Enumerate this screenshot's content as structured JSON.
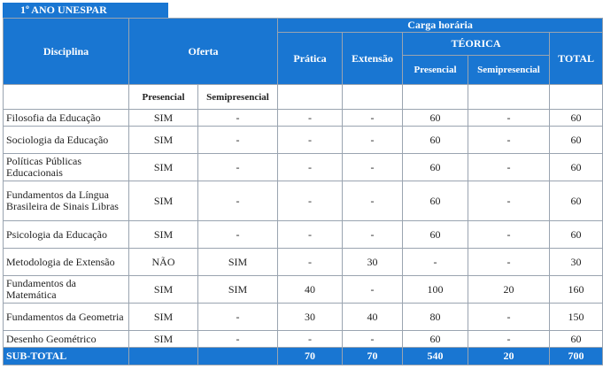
{
  "tab_label": "1º ANO  UNESPAR",
  "headers": {
    "disciplina": "Disciplina",
    "oferta": "Oferta",
    "carga": "Carga horária",
    "pratica": "Prática",
    "extensao": "Extensão",
    "teorica": "TÉORICA",
    "presencial": "Presencial",
    "semipresencial": "Semipresencial",
    "total": "TOTAL"
  },
  "sub_headers": {
    "presencial": "Presencial",
    "semipresencial": "Semipresencial"
  },
  "rows": [
    {
      "disciplina": "Filosofia da Educação",
      "presencial": "SIM",
      "semipresencial": "-",
      "pratica": "-",
      "extensao": "-",
      "t_presencial": "60",
      "t_semipresencial": "-",
      "total": "60"
    },
    {
      "disciplina": "Sociologia da Educação",
      "presencial": "SIM",
      "semipresencial": "-",
      "pratica": "-",
      "extensao": "-",
      "t_presencial": "60",
      "t_semipresencial": "-",
      "total": "60"
    },
    {
      "disciplina": "Políticas Públicas Educacionais",
      "presencial": "SIM",
      "semipresencial": "-",
      "pratica": "-",
      "extensao": "-",
      "t_presencial": "60",
      "t_semipresencial": "-",
      "total": "60"
    },
    {
      "disciplina": "Fundamentos da Língua Brasileira de Sinais Libras",
      "presencial": "SIM",
      "semipresencial": "-",
      "pratica": "-",
      "extensao": "-",
      "t_presencial": "60",
      "t_semipresencial": "-",
      "total": "60"
    },
    {
      "disciplina": "Psicologia da Educação",
      "presencial": "SIM",
      "semipresencial": "-",
      "pratica": "-",
      "extensao": "-",
      "t_presencial": "60",
      "t_semipresencial": "-",
      "total": "60"
    },
    {
      "disciplina": "Metodologia de Extensão",
      "presencial": "NÃO",
      "semipresencial": "SIM",
      "pratica": "-",
      "extensao": "30",
      "t_presencial": "-",
      "t_semipresencial": "-",
      "total": "30"
    },
    {
      "disciplina": "Fundamentos da Matemática",
      "presencial": "SIM",
      "semipresencial": "SIM",
      "pratica": "40",
      "extensao": "-",
      "t_presencial": "100",
      "t_semipresencial": "20",
      "total": "160"
    },
    {
      "disciplina": "Fundamentos da Geometria",
      "presencial": "SIM",
      "semipresencial": "-",
      "pratica": "30",
      "extensao": "40",
      "t_presencial": "80",
      "t_semipresencial": "-",
      "total": "150"
    },
    {
      "disciplina": "Desenho Geométrico",
      "presencial": "SIM",
      "semipresencial": "-",
      "pratica": "-",
      "extensao": "-",
      "t_presencial": "60",
      "t_semipresencial": "-",
      "total": "60"
    }
  ],
  "subtotal": {
    "label": "SUB-TOTAL",
    "pratica": "70",
    "extensao": "70",
    "t_presencial": "540",
    "t_semipresencial": "20",
    "total": "700"
  },
  "colors": {
    "header_blue": "#1976d2",
    "border": "#9aa4b0"
  }
}
